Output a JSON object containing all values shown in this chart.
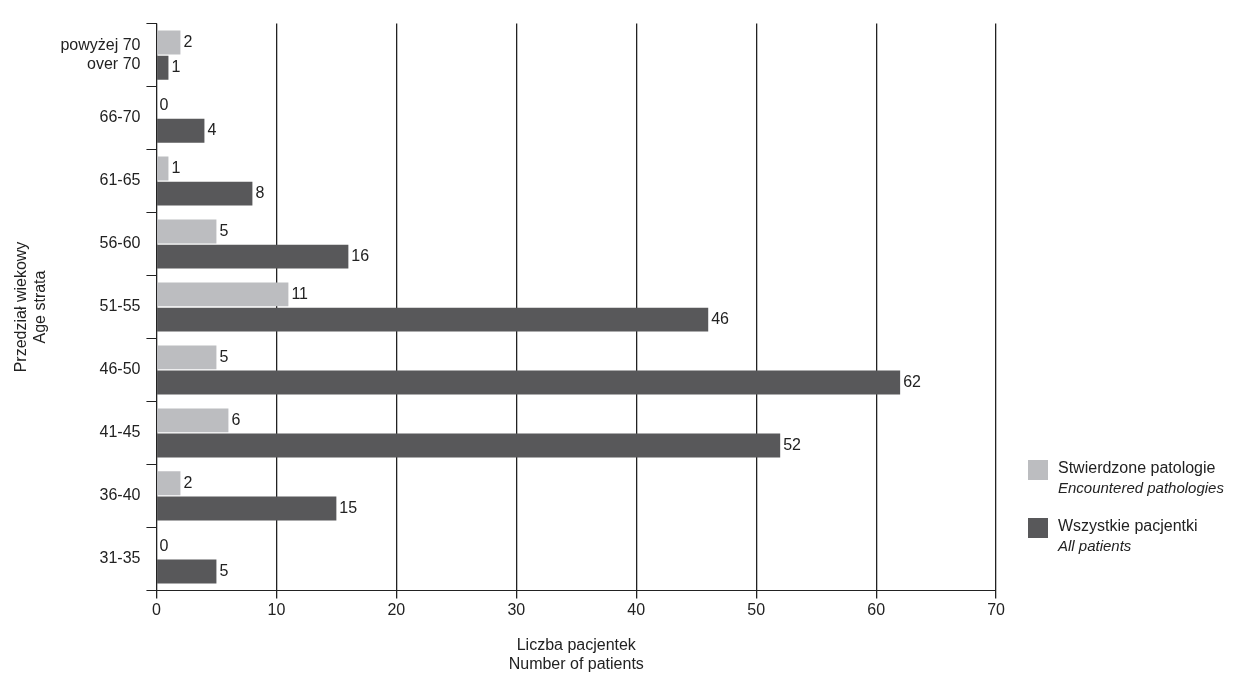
{
  "chart_data": {
    "type": "bar",
    "orientation": "horizontal",
    "categories": [
      "powyżej 70\nover 70",
      "66-70",
      "61-65",
      "56-60",
      "51-55",
      "46-50",
      "41-45",
      "36-40",
      "31-35"
    ],
    "series": [
      {
        "name": "Stwierdzone patologie\nEncountered pathologies",
        "color": "#bcbdc0",
        "values": [
          2,
          0,
          1,
          5,
          11,
          5,
          6,
          2,
          0
        ]
      },
      {
        "name": "Wszystkie pacjentki\nAll patients",
        "color": "#58585a",
        "values": [
          1,
          4,
          8,
          16,
          46,
          62,
          52,
          15,
          5
        ]
      }
    ],
    "xlabel": "Liczba pacjentek\nNumber of patients",
    "ylabel": "Przedział wiekowy\nAge strata",
    "xlim": [
      0,
      70
    ],
    "xticks": [
      0,
      10,
      20,
      30,
      40,
      50,
      60,
      70
    ],
    "grid": "x",
    "legend": "right",
    "data_labels": true
  }
}
